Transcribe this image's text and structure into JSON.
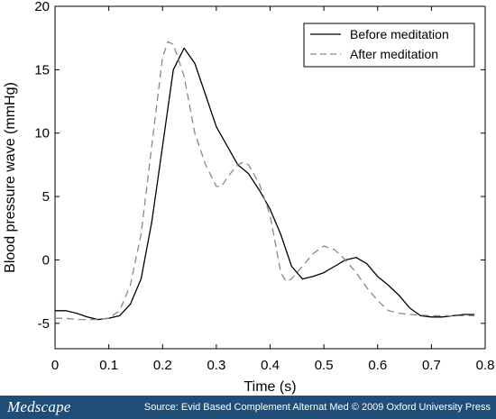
{
  "chart_data": {
    "type": "line",
    "title": "",
    "xlabel": "Time (s)",
    "ylabel": "Blood pressure wave (mmHg)",
    "xlim": [
      0,
      0.8
    ],
    "ylim": [
      -7,
      20
    ],
    "x_ticks": [
      "0",
      "0.1",
      "0.2",
      "0.3",
      "0.4",
      "0.5",
      "0.6",
      "0.7",
      "0.8"
    ],
    "y_ticks": [
      "20",
      "15",
      "10",
      "5",
      "0",
      "-5"
    ],
    "legend_position": "top-right",
    "grid": false,
    "series": [
      {
        "name": "Before meditation",
        "style": "solid",
        "color": "#000000",
        "points": [
          [
            0,
            -4
          ],
          [
            0.02,
            -4
          ],
          [
            0.04,
            -4.2
          ],
          [
            0.06,
            -4.5
          ],
          [
            0.08,
            -4.7
          ],
          [
            0.1,
            -4.6
          ],
          [
            0.12,
            -4.4
          ],
          [
            0.14,
            -3.5
          ],
          [
            0.16,
            -1.5
          ],
          [
            0.18,
            3
          ],
          [
            0.2,
            9
          ],
          [
            0.22,
            15
          ],
          [
            0.24,
            16.7
          ],
          [
            0.26,
            15.5
          ],
          [
            0.28,
            13
          ],
          [
            0.3,
            10.5
          ],
          [
            0.32,
            9
          ],
          [
            0.34,
            7.5
          ],
          [
            0.36,
            6.8
          ],
          [
            0.38,
            5.5
          ],
          [
            0.4,
            4
          ],
          [
            0.42,
            2
          ],
          [
            0.44,
            -0.5
          ],
          [
            0.46,
            -1.5
          ],
          [
            0.48,
            -1.3
          ],
          [
            0.5,
            -1
          ],
          [
            0.52,
            -0.5
          ],
          [
            0.54,
            0
          ],
          [
            0.56,
            0.2
          ],
          [
            0.58,
            -0.3
          ],
          [
            0.6,
            -1.3
          ],
          [
            0.62,
            -2
          ],
          [
            0.64,
            -2.8
          ],
          [
            0.66,
            -3.8
          ],
          [
            0.68,
            -4.4
          ],
          [
            0.7,
            -4.5
          ],
          [
            0.72,
            -4.5
          ],
          [
            0.74,
            -4.4
          ],
          [
            0.76,
            -4.3
          ],
          [
            0.78,
            -4.3
          ]
        ]
      },
      {
        "name": "After meditation",
        "style": "dashed",
        "color": "#888888",
        "points": [
          [
            0,
            -4.6
          ],
          [
            0.02,
            -4.6
          ],
          [
            0.04,
            -4.7
          ],
          [
            0.06,
            -4.7
          ],
          [
            0.08,
            -4.7
          ],
          [
            0.1,
            -4.6
          ],
          [
            0.12,
            -4
          ],
          [
            0.14,
            -2
          ],
          [
            0.16,
            2
          ],
          [
            0.18,
            9
          ],
          [
            0.2,
            16
          ],
          [
            0.21,
            17.2
          ],
          [
            0.22,
            17
          ],
          [
            0.24,
            14.5
          ],
          [
            0.26,
            10
          ],
          [
            0.28,
            7.5
          ],
          [
            0.3,
            5.8
          ],
          [
            0.31,
            5.8
          ],
          [
            0.32,
            6.5
          ],
          [
            0.34,
            7.5
          ],
          [
            0.35,
            7.7
          ],
          [
            0.36,
            7.5
          ],
          [
            0.38,
            6
          ],
          [
            0.4,
            3.5
          ],
          [
            0.42,
            -1
          ],
          [
            0.43,
            -1.7
          ],
          [
            0.44,
            -1.5
          ],
          [
            0.46,
            -0.5
          ],
          [
            0.48,
            0.5
          ],
          [
            0.5,
            1.1
          ],
          [
            0.52,
            0.8
          ],
          [
            0.54,
            0
          ],
          [
            0.56,
            -1
          ],
          [
            0.58,
            -2.2
          ],
          [
            0.6,
            -3.2
          ],
          [
            0.62,
            -4
          ],
          [
            0.64,
            -4.2
          ],
          [
            0.66,
            -4.3
          ],
          [
            0.7,
            -4.4
          ],
          [
            0.74,
            -4.4
          ],
          [
            0.78,
            -4.4
          ]
        ]
      }
    ]
  },
  "footer": {
    "brand": "Medscape",
    "source": "Source: Evid Based Complement Alternat Med © 2009 Oxford University Press",
    "background": "#1f4e79"
  }
}
